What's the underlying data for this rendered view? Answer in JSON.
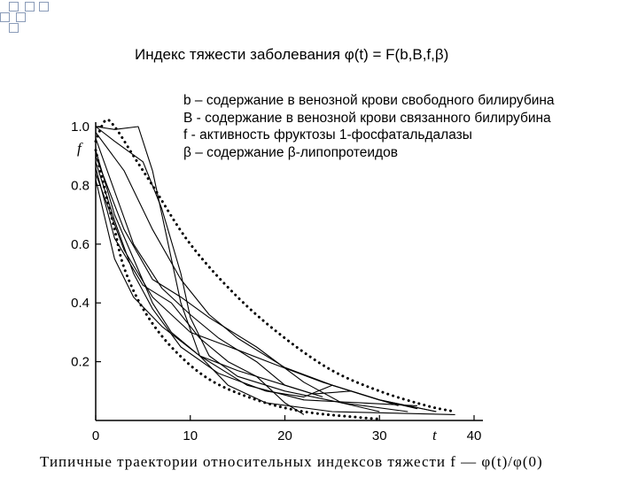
{
  "title": "Индекс тяжести заболевания φ(t) = F(b,B,f,β)",
  "legend": [
    "b – содержание в венозной крови свободного билирубина",
    "B - содержание в венозной крови связанного билирубина",
    "f -  активность фруктозы 1-фосфатальдалазы",
    "β – содержание  β-липопротеидов"
  ],
  "caption": "Типичные траектории относительных индексов тяжести  f — φ(t)/φ(0)",
  "colors": {
    "background": "#ffffff",
    "lines": "#000000",
    "decor": "#8a9bb8"
  },
  "chart_data": {
    "type": "line",
    "xlabel": "t",
    "ylabel": "f",
    "xlim": [
      0,
      40
    ],
    "ylim": [
      0,
      1.0
    ],
    "xticks": [
      "0",
      "10",
      "20",
      "30",
      "40"
    ],
    "yticks": [
      "0.2",
      "0.4",
      "0.6",
      "0.8",
      "1.0"
    ],
    "grid": false,
    "dotted_envelope": {
      "upper": [
        [
          0,
          0.95
        ],
        [
          1,
          1.02
        ],
        [
          2,
          1.0
        ],
        [
          4,
          0.9
        ],
        [
          6,
          0.8
        ],
        [
          10,
          0.6
        ],
        [
          15,
          0.42
        ],
        [
          20,
          0.28
        ],
        [
          25,
          0.17
        ],
        [
          30,
          0.1
        ],
        [
          35,
          0.05
        ],
        [
          38,
          0.03
        ]
      ],
      "lower": [
        [
          0,
          0.92
        ],
        [
          1,
          0.78
        ],
        [
          2,
          0.65
        ],
        [
          3,
          0.52
        ],
        [
          5,
          0.38
        ],
        [
          8,
          0.25
        ],
        [
          12,
          0.14
        ],
        [
          17,
          0.07
        ],
        [
          22,
          0.03
        ],
        [
          28,
          0.01
        ],
        [
          30,
          0.005
        ]
      ]
    },
    "series": [
      {
        "values": [
          [
            0,
            1.0
          ],
          [
            2,
            0.99
          ],
          [
            4.5,
            1.0
          ],
          [
            6,
            0.85
          ],
          [
            8,
            0.55
          ],
          [
            9,
            0.4
          ],
          [
            11,
            0.22
          ],
          [
            14,
            0.12
          ],
          [
            18,
            0.06
          ],
          [
            25,
            0.03
          ],
          [
            38,
            0.02
          ]
        ]
      },
      {
        "values": [
          [
            0,
            1.0
          ],
          [
            2,
            0.95
          ],
          [
            5,
            0.88
          ],
          [
            7,
            0.72
          ],
          [
            9,
            0.5
          ],
          [
            10,
            0.35
          ],
          [
            12,
            0.22
          ],
          [
            15,
            0.15
          ],
          [
            20,
            0.1
          ],
          [
            26,
            0.06
          ],
          [
            33,
            0.03
          ]
        ]
      },
      {
        "values": [
          [
            0,
            0.98
          ],
          [
            3,
            0.85
          ],
          [
            6,
            0.65
          ],
          [
            9,
            0.48
          ],
          [
            12,
            0.36
          ],
          [
            15,
            0.28
          ],
          [
            20,
            0.18
          ],
          [
            25,
            0.12
          ],
          [
            30,
            0.07
          ],
          [
            36,
            0.03
          ]
        ]
      },
      {
        "values": [
          [
            0,
            0.96
          ],
          [
            2,
            0.78
          ],
          [
            4,
            0.6
          ],
          [
            7,
            0.45
          ],
          [
            10,
            0.36
          ],
          [
            13,
            0.28
          ],
          [
            17,
            0.2
          ],
          [
            20,
            0.12
          ],
          [
            24,
            0.08
          ]
        ]
      },
      {
        "values": [
          [
            0,
            0.92
          ],
          [
            2,
            0.7
          ],
          [
            4,
            0.55
          ],
          [
            6,
            0.4
          ],
          [
            8,
            0.3
          ],
          [
            11,
            0.22
          ],
          [
            15,
            0.17
          ],
          [
            20,
            0.12
          ],
          [
            23,
            0.09
          ],
          [
            27,
            0.1
          ],
          [
            30,
            0.07
          ],
          [
            34,
            0.04
          ]
        ]
      },
      {
        "values": [
          [
            0,
            0.9
          ],
          [
            3,
            0.65
          ],
          [
            6,
            0.48
          ],
          [
            9,
            0.42
          ],
          [
            12,
            0.35
          ],
          [
            17,
            0.25
          ],
          [
            22,
            0.13
          ],
          [
            26,
            0.06
          ],
          [
            30,
            0.03
          ]
        ]
      },
      {
        "values": [
          [
            0,
            0.88
          ],
          [
            2,
            0.68
          ],
          [
            4,
            0.5
          ],
          [
            6,
            0.38
          ],
          [
            9,
            0.25
          ],
          [
            13,
            0.16
          ],
          [
            18,
            0.1
          ],
          [
            22,
            0.08
          ],
          [
            25,
            0.12
          ],
          [
            28,
            0.09
          ],
          [
            32,
            0.05
          ]
        ]
      },
      {
        "values": [
          [
            0,
            0.86
          ],
          [
            2,
            0.62
          ],
          [
            5,
            0.46
          ],
          [
            8,
            0.4
          ],
          [
            11,
            0.28
          ],
          [
            14,
            0.2
          ],
          [
            17,
            0.15
          ],
          [
            20,
            0.06
          ],
          [
            22,
            0.02
          ]
        ]
      },
      {
        "values": [
          [
            0,
            0.84
          ],
          [
            3,
            0.58
          ],
          [
            6,
            0.42
          ],
          [
            10,
            0.3
          ],
          [
            15,
            0.24
          ],
          [
            19,
            0.19
          ],
          [
            24,
            0.13
          ],
          [
            30,
            0.07
          ],
          [
            36,
            0.03
          ]
        ]
      },
      {
        "values": [
          [
            0,
            0.82
          ],
          [
            2,
            0.55
          ],
          [
            4,
            0.42
          ],
          [
            7,
            0.32
          ],
          [
            11,
            0.22
          ],
          [
            16,
            0.12
          ],
          [
            22,
            0.07
          ],
          [
            28,
            0.06
          ],
          [
            34,
            0.05
          ]
        ]
      }
    ]
  }
}
